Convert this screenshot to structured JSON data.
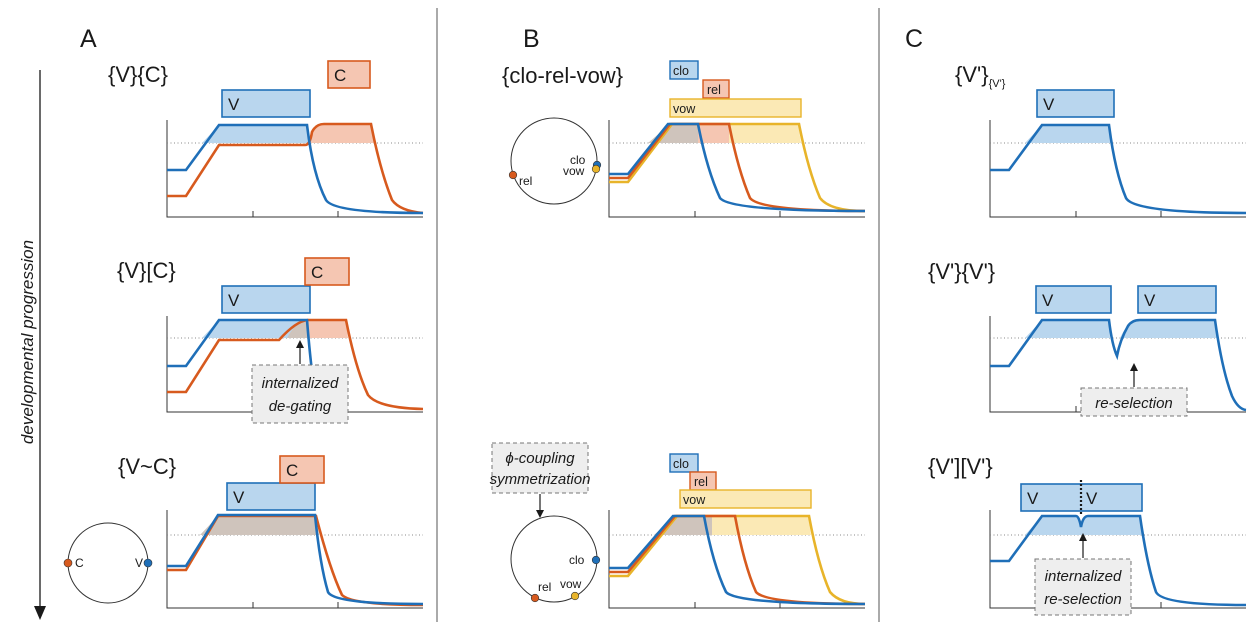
{
  "panels": {
    "a": {
      "letter": "A",
      "rows": [
        {
          "label": "{V}{C}",
          "boxes": [
            "V",
            "C"
          ]
        },
        {
          "label": "{V}[C}",
          "boxes": [
            "V",
            "C"
          ],
          "note": [
            "internalized",
            "de-gating"
          ]
        },
        {
          "label": "{V~C}",
          "boxes": [
            "V",
            "C"
          ],
          "circle": [
            "C",
            "V"
          ]
        }
      ]
    },
    "b": {
      "letter": "B",
      "label": "{clo-rel-vow}",
      "rows": [
        {
          "boxes": [
            "clo",
            "rel",
            "vow"
          ],
          "circle": [
            "clo",
            "vow",
            "rel"
          ]
        },
        {
          "boxes": [
            "clo",
            "rel",
            "vow"
          ],
          "circle": [
            "clo",
            "rel",
            "vow"
          ],
          "note": [
            "ϕ-coupling",
            "symmetrization"
          ]
        }
      ]
    },
    "c": {
      "letter": "C",
      "rows": [
        {
          "label": "{V'}",
          "sub": "{V'}",
          "boxes": [
            "V"
          ]
        },
        {
          "label": "{V'}{V'}",
          "boxes": [
            "V",
            "V"
          ],
          "note": [
            "re-selection"
          ]
        },
        {
          "label": "{V'][V'}",
          "boxes": [
            "V",
            "V"
          ],
          "note": [
            "internalized",
            "re-selection"
          ]
        }
      ]
    }
  },
  "axis_label": "developmental progression",
  "colors": {
    "blue": "#1f6fb8",
    "orange": "#d75a1e",
    "yellow": "#e8b42a",
    "blue_fill": "#b9d6ee",
    "orange_fill": "#f5c6b2",
    "yellow_fill": "#fbe9b5",
    "gray_fill": "#cfc4bc",
    "note_fill": "#eeeeee"
  }
}
